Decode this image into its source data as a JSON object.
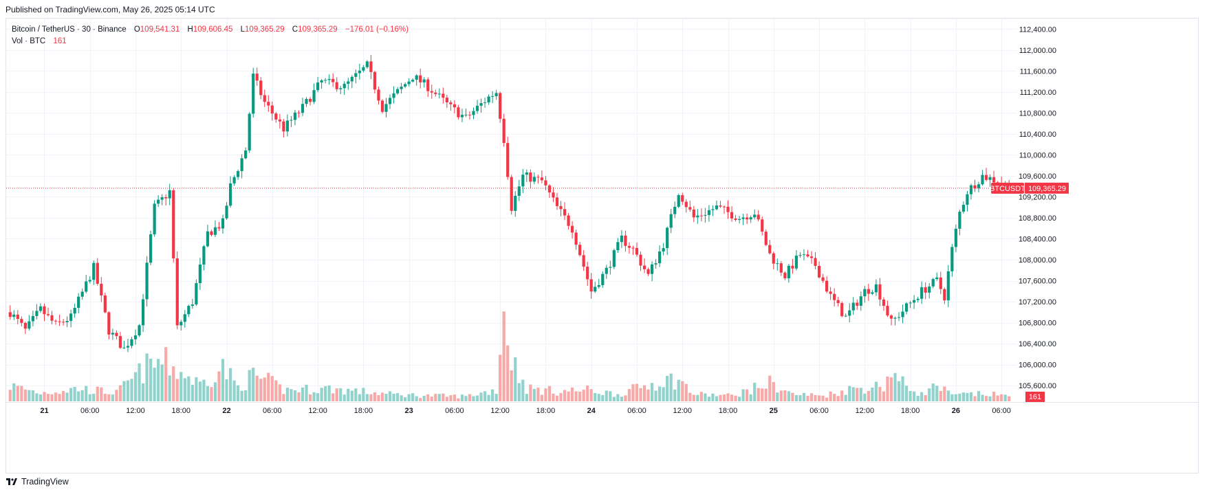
{
  "published_line": "Published on TradingView.com, May 26, 2025 05:14 UTC",
  "brand": "TradingView",
  "legend": {
    "symbol": "Bitcoin / TetherUS · 30 · Binance",
    "o_label": "O",
    "o_value": "109,541.31",
    "h_label": "H",
    "h_value": "109,606.45",
    "l_label": "L",
    "l_value": "109,365.29",
    "c_label": "C",
    "c_value": "109,365.29",
    "change": "−176.01 (−0.16%)",
    "vol_label": "Vol · BTC",
    "vol_value": "161"
  },
  "colors": {
    "up": "#089981",
    "down": "#f23645",
    "vol_up": "#92d2cc",
    "vol_down": "#f7a9a7",
    "grid": "#f0f3fa",
    "border": "#e0e3eb"
  },
  "chart_data": {
    "type": "candlestick",
    "title": "Bitcoin / TetherUS · 30 · Binance",
    "ylim": [
      105300,
      112600
    ],
    "y_ticks": [
      "112,400.00",
      "112,000.00",
      "111,600.00",
      "111,200.00",
      "110,800.00",
      "110,400.00",
      "110,000.00",
      "109,600.00",
      "109,200.00",
      "108,800.00",
      "108,400.00",
      "108,000.00",
      "107,600.00",
      "107,200.00",
      "106,800.00",
      "106,400.00",
      "106,000.00",
      "105,600.00"
    ],
    "x_ticks": [
      "21",
      "06:00",
      "12:00",
      "18:00",
      "22",
      "06:00",
      "12:00",
      "18:00",
      "23",
      "06:00",
      "12:00",
      "18:00",
      "24",
      "06:00",
      "12:00",
      "18:00",
      "25",
      "06:00",
      "12:00",
      "18:00",
      "26",
      "06:00"
    ],
    "x_tick_bars": [
      9,
      21,
      33,
      45,
      57,
      69,
      81,
      93,
      105,
      117,
      129,
      141,
      153,
      165,
      177,
      189,
      201,
      213,
      225,
      237,
      249,
      261
    ],
    "bars_total": 264,
    "last_price": 109365.29,
    "last_price_label": "109,365.29",
    "symbol_tag": "BTCUSDT",
    "volume_label": "161",
    "anchors": [
      [
        0,
        107000
      ],
      [
        4,
        106650
      ],
      [
        8,
        107050
      ],
      [
        12,
        106750
      ],
      [
        16,
        106900
      ],
      [
        22,
        107850
      ],
      [
        26,
        106650
      ],
      [
        30,
        106300
      ],
      [
        34,
        106750
      ],
      [
        38,
        109000
      ],
      [
        42,
        109300
      ],
      [
        44,
        106700
      ],
      [
        48,
        107200
      ],
      [
        52,
        108500
      ],
      [
        56,
        108700
      ],
      [
        58,
        109400
      ],
      [
        62,
        110100
      ],
      [
        64,
        111500
      ],
      [
        67,
        111000
      ],
      [
        72,
        110500
      ],
      [
        77,
        110900
      ],
      [
        82,
        111400
      ],
      [
        88,
        111300
      ],
      [
        94,
        111700
      ],
      [
        98,
        110900
      ],
      [
        106,
        111500
      ],
      [
        110,
        111300
      ],
      [
        116,
        110900
      ],
      [
        120,
        110700
      ],
      [
        126,
        111100
      ],
      [
        128,
        111200
      ],
      [
        130,
        110300
      ],
      [
        132,
        109000
      ],
      [
        135,
        109600
      ],
      [
        140,
        109500
      ],
      [
        144,
        109000
      ],
      [
        148,
        108600
      ],
      [
        153,
        107400
      ],
      [
        157,
        107800
      ],
      [
        161,
        108400
      ],
      [
        164,
        108200
      ],
      [
        168,
        107700
      ],
      [
        172,
        108300
      ],
      [
        176,
        109300
      ],
      [
        180,
        108800
      ],
      [
        186,
        109000
      ],
      [
        192,
        108800
      ],
      [
        196,
        108900
      ],
      [
        200,
        108100
      ],
      [
        204,
        107700
      ],
      [
        208,
        108100
      ],
      [
        212,
        107900
      ],
      [
        216,
        107300
      ],
      [
        220,
        106900
      ],
      [
        225,
        107400
      ],
      [
        228,
        107500
      ],
      [
        232,
        106800
      ],
      [
        236,
        107100
      ],
      [
        240,
        107400
      ],
      [
        244,
        107600
      ],
      [
        246,
        107300
      ],
      [
        248,
        108200
      ],
      [
        250,
        108900
      ],
      [
        252,
        109300
      ],
      [
        256,
        109600
      ],
      [
        260,
        109500
      ],
      [
        263,
        109365
      ]
    ],
    "volume_anchors": [
      [
        0,
        55
      ],
      [
        8,
        30
      ],
      [
        18,
        45
      ],
      [
        28,
        30
      ],
      [
        36,
        120
      ],
      [
        40,
        140
      ],
      [
        44,
        110
      ],
      [
        50,
        60
      ],
      [
        56,
        120
      ],
      [
        60,
        50
      ],
      [
        64,
        90
      ],
      [
        68,
        70
      ],
      [
        72,
        40
      ],
      [
        84,
        45
      ],
      [
        92,
        35
      ],
      [
        100,
        25
      ],
      [
        110,
        20
      ],
      [
        120,
        18
      ],
      [
        128,
        40
      ],
      [
        130,
        330
      ],
      [
        132,
        150
      ],
      [
        136,
        45
      ],
      [
        144,
        35
      ],
      [
        152,
        40
      ],
      [
        160,
        25
      ],
      [
        172,
        75
      ],
      [
        176,
        75
      ],
      [
        180,
        25
      ],
      [
        190,
        20
      ],
      [
        198,
        55
      ],
      [
        200,
        65
      ],
      [
        206,
        25
      ],
      [
        214,
        20
      ],
      [
        222,
        45
      ],
      [
        230,
        55
      ],
      [
        232,
        110
      ],
      [
        234,
        70
      ],
      [
        240,
        25
      ],
      [
        244,
        55
      ],
      [
        248,
        20
      ],
      [
        252,
        25
      ],
      [
        258,
        25
      ],
      [
        263,
        18
      ]
    ]
  }
}
